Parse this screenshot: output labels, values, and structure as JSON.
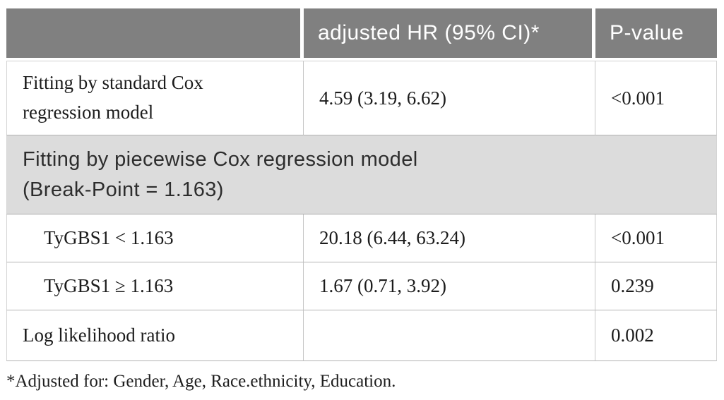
{
  "header": {
    "col_empty": "",
    "col_hr": "adjusted HR (95% CI)*",
    "col_p": "P-value"
  },
  "rows": [
    {
      "label": "Fitting by standard Cox regression model",
      "hr": "4.59 (3.19, 6.62)",
      "p": "<0.001"
    },
    {
      "type": "section",
      "lines": [
        "Fitting by piecewise Cox regression model",
        "(Break-Point = 1.163)"
      ]
    },
    {
      "label": "TyGBS1 < 1.163",
      "hr": "20.18 (6.44, 63.24)",
      "p": "<0.001"
    },
    {
      "label": "TyGBS1 ≥ 1.163",
      "hr": "1.67 (0.71, 3.92)",
      "p": "0.239"
    },
    {
      "label": "Log likelihood ratio",
      "hr": "",
      "p": "0.002"
    }
  ],
  "footnote": "*Adjusted for: Gender, Age, Race.ethnicity, Education.",
  "colors": {
    "header_bg": "#808080",
    "header_text": "#ffffff",
    "section_bg": "#dcdcdc",
    "body_text": "#1c1c1c",
    "border": "#b3b3b3"
  }
}
